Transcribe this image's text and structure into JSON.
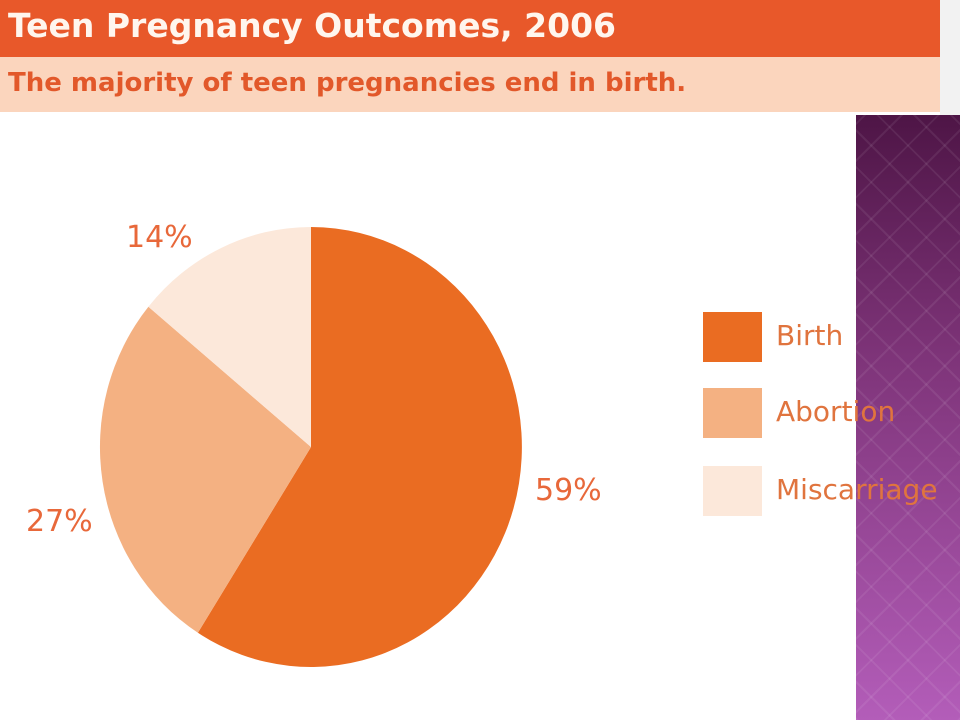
{
  "header": {
    "title": "Teen Pregnancy Outcomes, 2006",
    "subtitle": "The majority of teen pregnancies end in birth."
  },
  "chart_data": {
    "type": "pie",
    "title": "Teen Pregnancy Outcomes, 2006",
    "subtitle": "The majority of teen pregnancies end in birth.",
    "slices": [
      {
        "label": "Birth",
        "value": 59,
        "display": "59%",
        "color": "#ea6c22"
      },
      {
        "label": "Abortion",
        "value": 27,
        "display": "27%",
        "color": "#f4b182"
      },
      {
        "label": "Miscarriage",
        "value": 14,
        "display": "14%",
        "color": "#fce8da"
      }
    ],
    "legend_position": "right"
  },
  "colors": {
    "title_bar": "#e8582a",
    "subtitle_bar": "#fbd5bd",
    "label_text": "#e8683a",
    "decorative_panel": "#873a8a"
  }
}
